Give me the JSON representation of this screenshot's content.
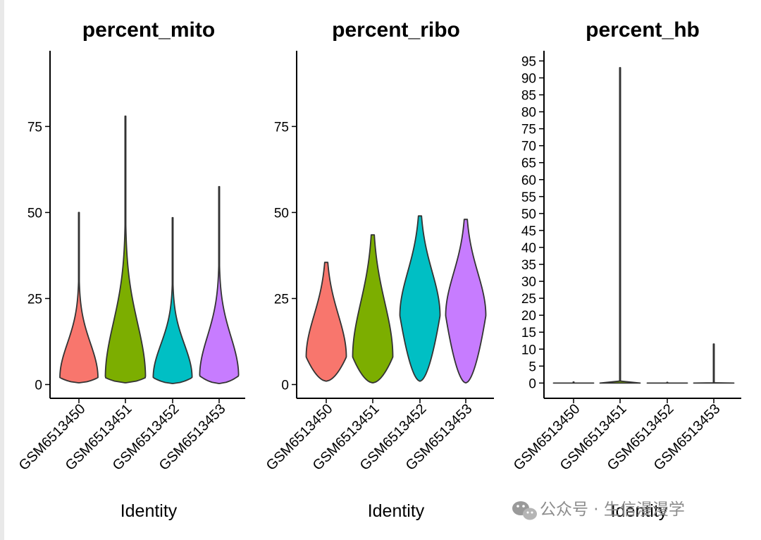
{
  "chart_data": [
    {
      "type": "violin",
      "title": "percent_mito",
      "xlabel": "Identity",
      "ylabel": "",
      "ylim": [
        -4,
        97
      ],
      "yticks": [
        0,
        25,
        50,
        75
      ],
      "categories": [
        "GSM6513450",
        "GSM6513451",
        "GSM6513452",
        "GSM6513453"
      ],
      "colors": [
        "#F8766D",
        "#7CAE00",
        "#00BFC4",
        "#C77CFF"
      ],
      "series": [
        {
          "category": "GSM6513450",
          "min": 0.5,
          "mode": 2,
          "max": 50,
          "max_width": 0.9
        },
        {
          "category": "GSM6513451",
          "min": 0.5,
          "mode": 2,
          "max": 78,
          "max_width": 0.95
        },
        {
          "category": "GSM6513452",
          "min": 0.3,
          "mode": 2,
          "max": 48.5,
          "max_width": 0.92
        },
        {
          "category": "GSM6513453",
          "min": 0.3,
          "mode": 2.5,
          "max": 57.5,
          "max_width": 0.92
        }
      ]
    },
    {
      "type": "violin",
      "title": "percent_ribo",
      "xlabel": "Identity",
      "ylabel": "",
      "ylim": [
        -4,
        97
      ],
      "yticks": [
        0,
        25,
        50,
        75
      ],
      "categories": [
        "GSM6513450",
        "GSM6513451",
        "GSM6513452",
        "GSM6513453"
      ],
      "colors": [
        "#F8766D",
        "#7CAE00",
        "#00BFC4",
        "#C77CFF"
      ],
      "series": [
        {
          "category": "GSM6513450",
          "min": 1,
          "mode": 8,
          "max": 35.5,
          "max_width": 0.95
        },
        {
          "category": "GSM6513451",
          "min": 0.5,
          "mode": 8,
          "max": 43.5,
          "max_width": 0.95
        },
        {
          "category": "GSM6513452",
          "min": 1,
          "mode": 20,
          "max": 49,
          "max_width": 0.95
        },
        {
          "category": "GSM6513453",
          "min": 0.5,
          "mode": 20,
          "max": 48,
          "max_width": 0.95
        }
      ]
    },
    {
      "type": "violin",
      "title": "percent_hb",
      "xlabel": "Identity",
      "ylabel": "",
      "ylim": [
        -4.5,
        98
      ],
      "yticks": [
        0,
        5,
        10,
        15,
        20,
        25,
        30,
        35,
        40,
        45,
        50,
        55,
        60,
        65,
        70,
        75,
        80,
        85,
        90,
        95
      ],
      "categories": [
        "GSM6513450",
        "GSM6513451",
        "GSM6513452",
        "GSM6513453"
      ],
      "colors": [
        "#F8766D",
        "#7CAE00",
        "#00BFC4",
        "#C77CFF"
      ],
      "series": [
        {
          "category": "GSM6513450",
          "min": 0,
          "mode": 0,
          "max": 0.3,
          "max_width": 0.95
        },
        {
          "category": "GSM6513451",
          "min": 0,
          "mode": 0,
          "max": 93,
          "max_width": 0.95
        },
        {
          "category": "GSM6513452",
          "min": 0,
          "mode": 0,
          "max": 0.2,
          "max_width": 0.95
        },
        {
          "category": "GSM6513453",
          "min": 0,
          "mode": 0,
          "max": 11.5,
          "max_width": 0.95
        }
      ]
    }
  ],
  "watermark": {
    "text": "公众号 · 生信漫漫学",
    "icon": "wechat-icon",
    "color": "#8c8c8c"
  },
  "style": {
    "outline": "#333333",
    "axis": "#000000"
  }
}
